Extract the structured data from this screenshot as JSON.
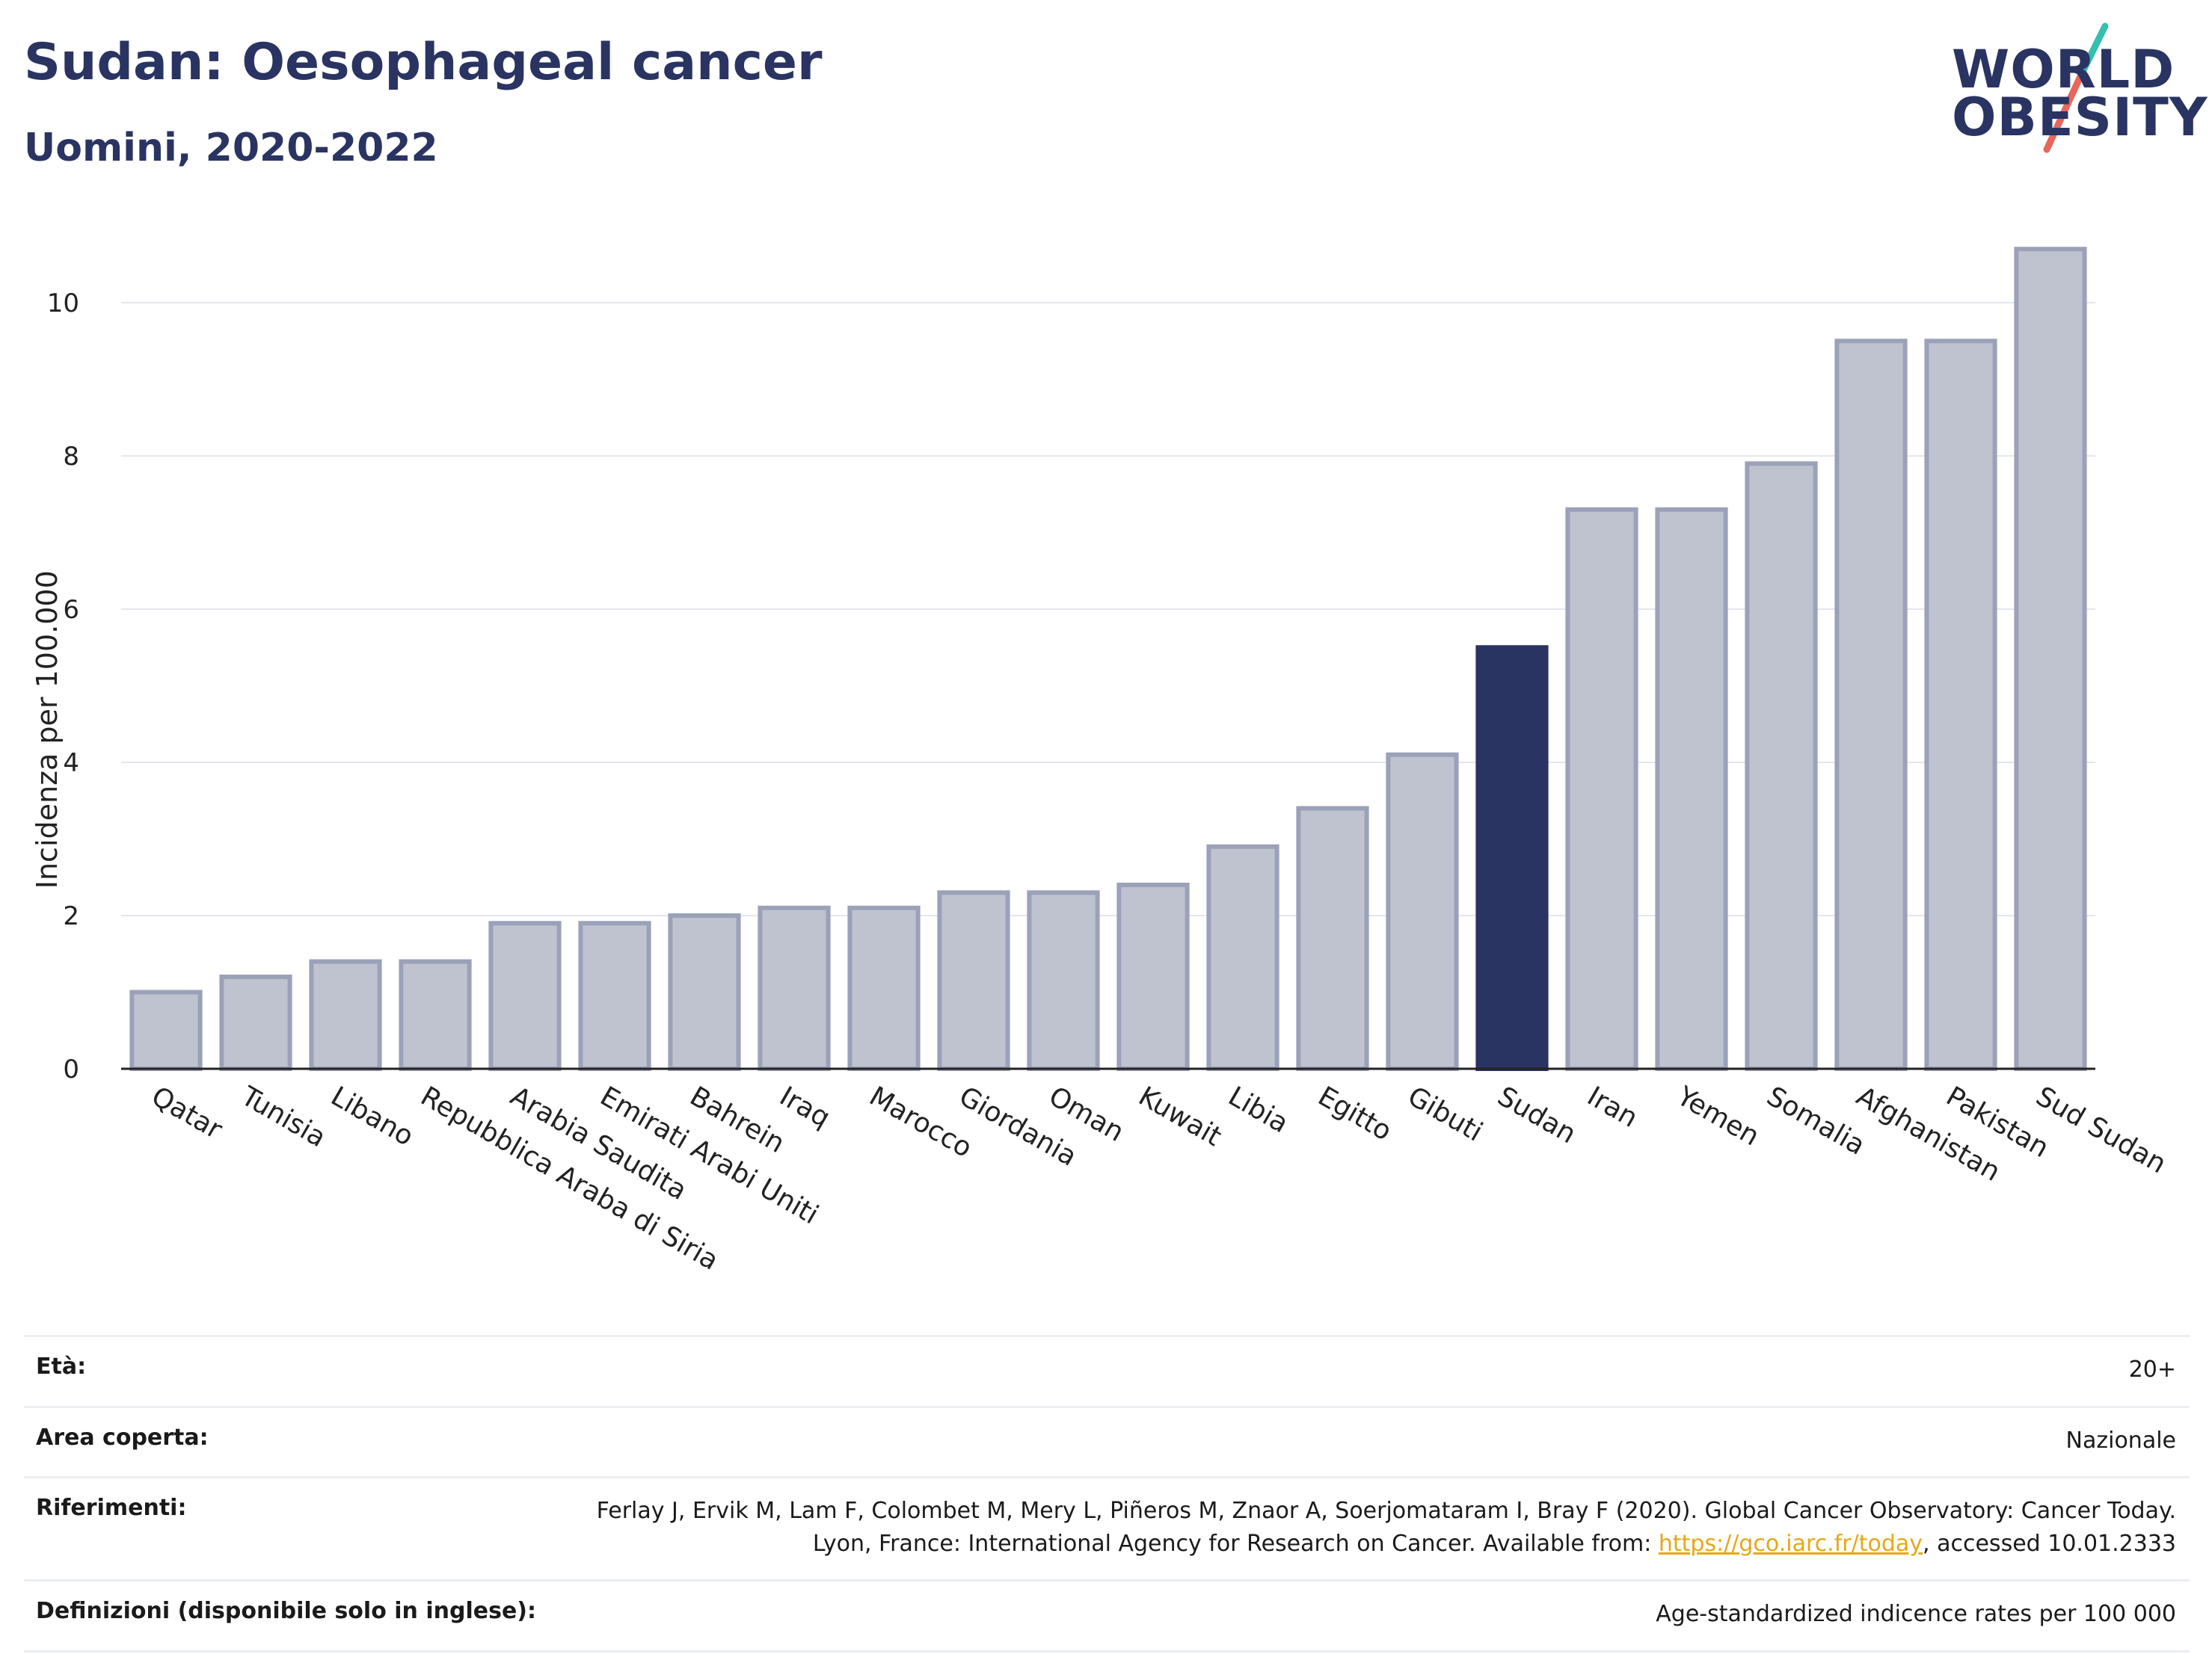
{
  "header": {
    "title": "Sudan: Oesophageal cancer",
    "subtitle": "Uomini, 2020-2022"
  },
  "logo": {
    "line1": "WORLD",
    "line2": "OBESITY",
    "slash_colors": [
      "#35bfae",
      "#e8675a"
    ]
  },
  "colors": {
    "bar": "#bfc3d0",
    "bar_border": "#9ba1b8",
    "highlight": "#2a3462",
    "grid": "#e4e6ec",
    "axis": "#222222"
  },
  "chart_data": {
    "type": "bar",
    "title": "Sudan: Oesophageal cancer",
    "subtitle": "Uomini, 2020-2022",
    "xlabel": "",
    "ylabel": "Incidenza per 100.000",
    "ylim": [
      0,
      11
    ],
    "yticks": [
      0,
      2,
      4,
      6,
      8,
      10
    ],
    "grid": true,
    "highlight": "Sudan",
    "categories": [
      "Qatar",
      "Tunisia",
      "Libano",
      "Repubblica Araba di Siria",
      "Arabia Saudita",
      "Emirati Arabi Uniti",
      "Bahrein",
      "Iraq",
      "Marocco",
      "Giordania",
      "Oman",
      "Kuwait",
      "Libia",
      "Egitto",
      "Gibuti",
      "Sudan",
      "Iran",
      "Yemen",
      "Somalia",
      "Afghanistan",
      "Pakistan",
      "Sud Sudan"
    ],
    "values": [
      1.0,
      1.2,
      1.4,
      1.4,
      1.9,
      1.9,
      2.0,
      2.1,
      2.1,
      2.3,
      2.3,
      2.4,
      2.9,
      3.4,
      4.1,
      5.5,
      7.3,
      7.3,
      7.9,
      9.5,
      9.5,
      10.7
    ]
  },
  "meta": {
    "rows": [
      {
        "label": "Età:",
        "value": "20+"
      },
      {
        "label": "Area coperta:",
        "value": "Nazionale"
      },
      {
        "label": "Riferimenti:",
        "value_prefix": "Ferlay J, Ervik M, Lam F, Colombet M, Mery L, Piñeros M, Znaor A, Soerjomataram I, Bray F (2020). Global Cancer Observatory: Cancer Today. Lyon, France: International Agency for Research on Cancer. Available from: ",
        "link": "https://gco.iarc.fr/today",
        "value_suffix": ", accessed 10.01.2333"
      },
      {
        "label": "Definizioni (disponibile solo in inglese):",
        "value": "Age-standardized indicence rates per 100 000"
      }
    ]
  }
}
